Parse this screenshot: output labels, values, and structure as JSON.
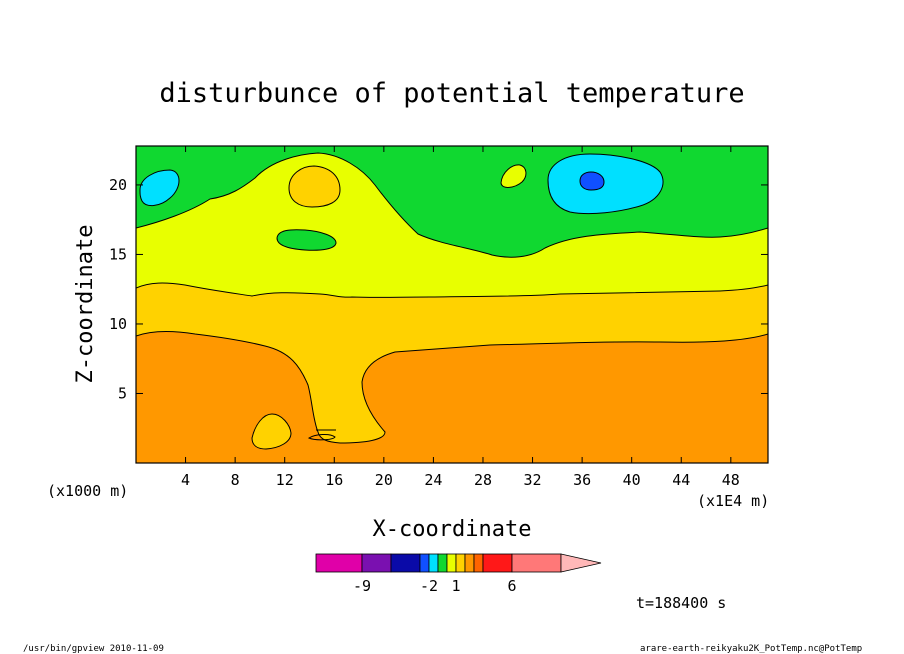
{
  "chart_data": {
    "type": "heatmap",
    "title": "disturbunce of potential temperature",
    "xlabel": "X-coordinate",
    "ylabel": "Z-coordinate",
    "x_unit_note": "(x1000 m)",
    "x_scale_note": "(x1E4 m)",
    "xlim": [
      0,
      51
    ],
    "ylim": [
      0,
      22.8
    ],
    "x_ticks": [
      4,
      8,
      12,
      16,
      20,
      24,
      28,
      32,
      36,
      40,
      44,
      48
    ],
    "y_ticks": [
      5,
      10,
      15,
      20
    ],
    "time_label": "t=188400 s",
    "colorbar": {
      "tick_labels": [
        {
          "label": "-9",
          "value": -9
        },
        {
          "label": "-2",
          "value": -2
        },
        {
          "label": "1",
          "value": 1
        },
        {
          "label": "6",
          "value": 6
        }
      ],
      "colors": [
        "#e000a8",
        "#7a10b0",
        "#0a0aa8",
        "#1050ff",
        "#00e0ff",
        "#10d830",
        "#e8ff00",
        "#ffd200",
        "#ff9800",
        "#ff6400",
        "#ff1818",
        "#ff7878",
        "#ffb8b8"
      ],
      "bands": [
        -12,
        -9,
        -6,
        -3,
        -2,
        -1,
        0,
        1,
        2,
        3,
        4,
        6,
        8
      ]
    },
    "levels": {
      "layer_a": {
        "label": "orange",
        "color": "#ff9800"
      },
      "layer_b": {
        "label": "gold",
        "color": "#ffd200"
      },
      "layer_c": {
        "label": "yellow",
        "color": "#e8ff00"
      },
      "layer_d": {
        "label": "green",
        "color": "#10d830"
      },
      "layer_e": {
        "label": "cyan",
        "color": "#00e0ff"
      },
      "layer_f": {
        "label": "blue",
        "color": "#1050ff"
      }
    }
  },
  "footer": {
    "left": "/usr/bin/gpview  2010-11-09",
    "right": "arare-earth-reikyaku2K_PotTemp.nc@PotTemp"
  }
}
